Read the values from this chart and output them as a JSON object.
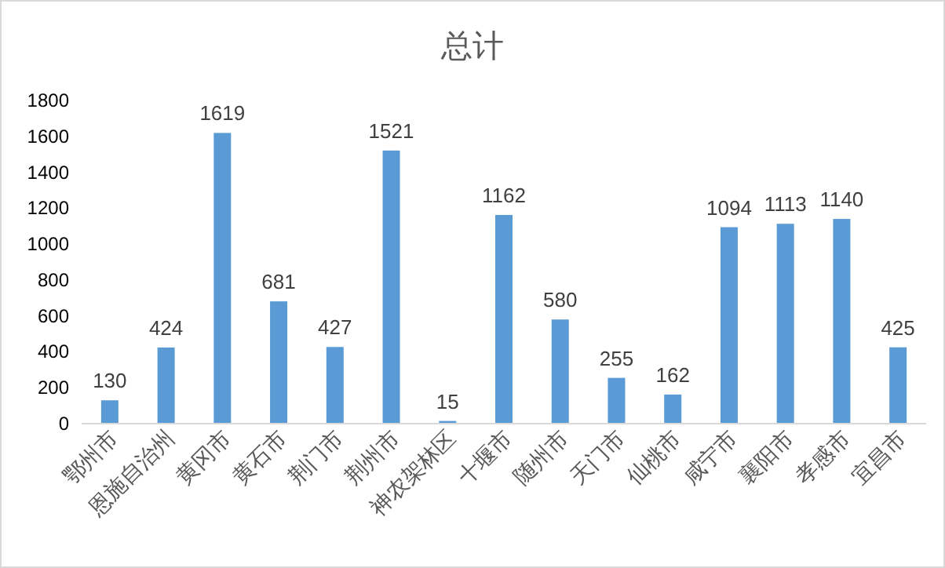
{
  "chart_data": {
    "type": "bar",
    "title": "总计",
    "categories": [
      "鄂州市",
      "恩施自治州",
      "黄冈市",
      "黄石市",
      "荆门市",
      "荆州市",
      "神农架林区",
      "十堰市",
      "随州市",
      "天门市",
      "仙桃市",
      "咸宁市",
      "襄阳市",
      "孝感市",
      "宜昌市"
    ],
    "values": [
      130,
      424,
      1619,
      681,
      427,
      1521,
      15,
      1162,
      580,
      255,
      162,
      1094,
      1113,
      1140,
      425
    ],
    "color": "#5b9bd5",
    "ylim": [
      0,
      1800
    ],
    "yticks": [
      0,
      200,
      400,
      600,
      800,
      1000,
      1200,
      1400,
      1600,
      1800
    ],
    "data_labels": true
  }
}
